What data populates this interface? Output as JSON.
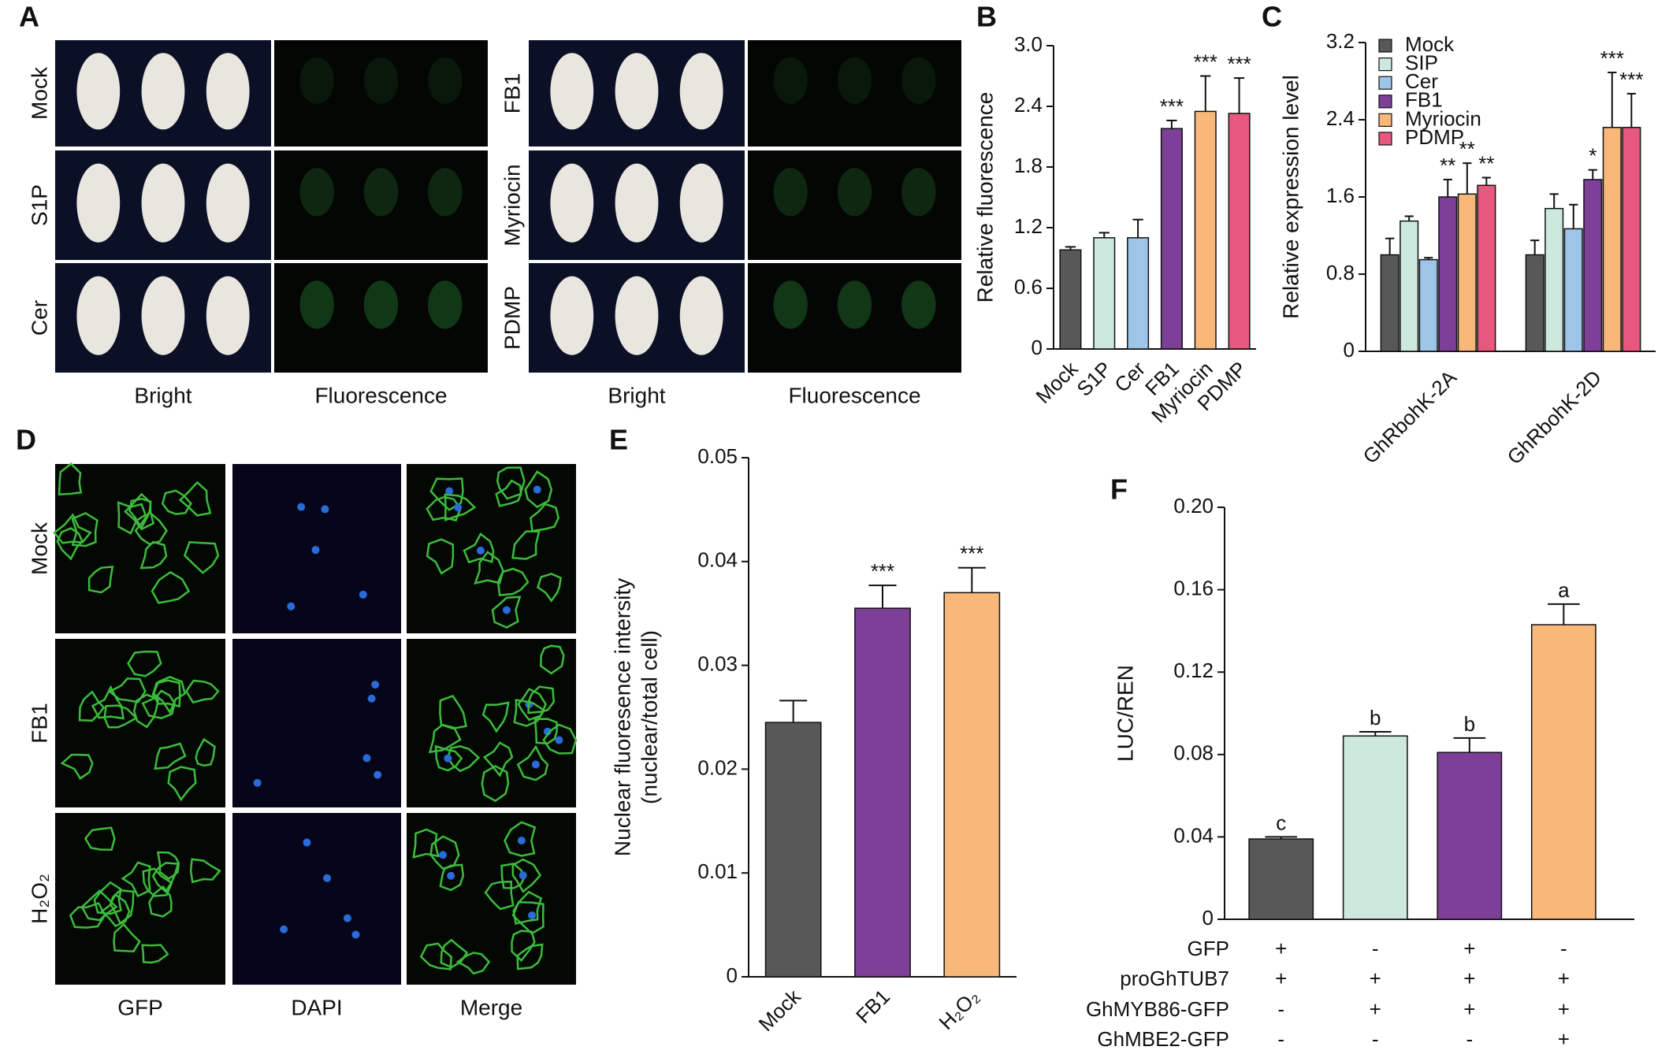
{
  "chart_data": [
    {
      "type": "bar",
      "panel": "B",
      "ylabel": "Relative fluorescence",
      "categories": [
        "Mock",
        "S1P",
        "Cer",
        "FB1",
        "Myriocin",
        "PDMP"
      ],
      "values": [
        0.98,
        1.1,
        1.1,
        2.18,
        2.35,
        2.33
      ],
      "errors": [
        0.03,
        0.05,
        0.18,
        0.08,
        0.35,
        0.35
      ],
      "annotations": [
        null,
        null,
        null,
        "***",
        "***",
        "***"
      ],
      "colors": [
        "#585858",
        "#cde9dd",
        "#9cc5e8",
        "#7d3f98",
        "#f8b879",
        "#e8577e"
      ],
      "ylim": [
        0,
        3
      ],
      "yticks": [
        0,
        0.6,
        1.2,
        1.8,
        2.4,
        {
          "value": 3,
          "label": "3.0"
        }
      ]
    },
    {
      "type": "grouped_bar",
      "panel": "C",
      "ylabel": "Relative expression level",
      "categories": [
        "GhRbohK-2A",
        "GhRbohK-2D"
      ],
      "series": [
        {
          "name": "Mock",
          "color": "#585858",
          "values": [
            1.0,
            1.0
          ],
          "errors": [
            0.17,
            0.15
          ],
          "annotations": [
            null,
            null
          ]
        },
        {
          "name": "SIP",
          "color": "#cde9dd",
          "values": [
            1.35,
            1.48
          ],
          "errors": [
            0.05,
            0.15
          ],
          "annotations": [
            null,
            null
          ]
        },
        {
          "name": "Cer",
          "color": "#9cc5e8",
          "values": [
            0.95,
            1.27
          ],
          "errors": [
            0.02,
            0.25
          ],
          "annotations": [
            null,
            null
          ]
        },
        {
          "name": "FB1",
          "color": "#7d3f98",
          "values": [
            1.6,
            1.78
          ],
          "errors": [
            0.18,
            0.1
          ],
          "annotations": [
            "**",
            "*"
          ]
        },
        {
          "name": "Myriocin",
          "color": "#f8b879",
          "values": [
            1.63,
            2.32
          ],
          "errors": [
            0.32,
            0.57
          ],
          "annotations": [
            "**",
            "***"
          ]
        },
        {
          "name": "PDMP",
          "color": "#e8577e",
          "values": [
            1.72,
            2.32
          ],
          "errors": [
            0.08,
            0.35
          ],
          "annotations": [
            "**",
            "***"
          ]
        }
      ],
      "ylim": [
        0,
        3.2
      ],
      "yticks": [
        0,
        0.8,
        1.6,
        2.4,
        3.2
      ]
    },
    {
      "type": "bar",
      "panel": "E",
      "ylabel": [
        "Nuclear fluoresence intersity",
        "(nuclear/total cell)"
      ],
      "categories": [
        "Mock",
        "FB1",
        "H₂O₂"
      ],
      "values": [
        0.0245,
        0.0355,
        0.037
      ],
      "errors": [
        0.0021,
        0.0022,
        0.0024
      ],
      "annotations": [
        null,
        "***",
        "***"
      ],
      "colors": [
        "#585858",
        "#7d3f98",
        "#f8b879"
      ],
      "ylim": [
        0,
        0.05
      ],
      "yticks": [
        0,
        0.01,
        0.02,
        0.03,
        0.04,
        0.05
      ]
    },
    {
      "type": "bar",
      "panel": "F",
      "ylabel": "LUC/REN",
      "values": [
        0.039,
        0.089,
        0.081,
        0.143
      ],
      "errors": [
        0.001,
        0.002,
        0.007,
        0.01
      ],
      "annotations": [
        "c",
        "b",
        "b",
        "a"
      ],
      "colors": [
        "#585858",
        "#cde9dd",
        "#7d3f98",
        "#f8b879"
      ],
      "ylim": [
        0,
        0.2
      ],
      "yticks": [
        0,
        0.04,
        0.08,
        0.12,
        0.16,
        {
          "value": 0.2,
          "label": "0.20"
        }
      ],
      "conditions": [
        {
          "name": "GFP",
          "marks": [
            "+",
            "-",
            "+",
            "-"
          ]
        },
        {
          "name": "proGhTUB7",
          "marks": [
            "+",
            "+",
            "+",
            "+"
          ]
        },
        {
          "name": "GhMYB86-GFP",
          "marks": [
            "-",
            "+",
            "+",
            "+"
          ]
        },
        {
          "name": "GhMBE2-GFP",
          "marks": [
            "-",
            "-",
            "-",
            "+"
          ]
        }
      ]
    }
  ],
  "image_panels": [
    {
      "panel": "A",
      "groups": [
        {
          "rows": [
            "Mock",
            "S1P",
            "Cer"
          ],
          "columns": [
            "Bright",
            "Fluorescence"
          ]
        },
        {
          "rows": [
            "FB1",
            "Myriocin",
            "PDMP"
          ],
          "columns": [
            "Bright",
            "Fluorescence"
          ]
        }
      ]
    },
    {
      "panel": "D",
      "groups": [
        {
          "rows": [
            "Mock",
            "FB1",
            "H₂O₂"
          ],
          "columns": [
            "GFP",
            "DAPI",
            "Merge"
          ]
        }
      ]
    }
  ]
}
